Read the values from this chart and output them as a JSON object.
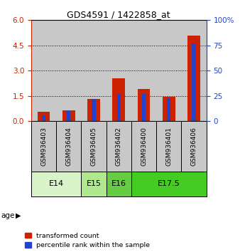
{
  "title": "GDS4591 / 1422858_at",
  "samples": [
    "GSM936403",
    "GSM936404",
    "GSM936405",
    "GSM936402",
    "GSM936400",
    "GSM936401",
    "GSM936406"
  ],
  "transformed_counts": [
    0.55,
    0.65,
    1.3,
    2.55,
    1.9,
    1.45,
    5.1
  ],
  "percentile_ranks_pct": [
    5.5,
    10.0,
    22.0,
    27.0,
    26.5,
    22.5,
    77.0
  ],
  "age_groups": [
    {
      "label": "E14",
      "span": [
        0,
        2
      ],
      "color": "#d8f4c8"
    },
    {
      "label": "E15",
      "span": [
        2,
        3
      ],
      "color": "#b0e890"
    },
    {
      "label": "E16",
      "span": [
        3,
        4
      ],
      "color": "#66cc44"
    },
    {
      "label": "E17.5",
      "span": [
        4,
        7
      ],
      "color": "#44cc22"
    }
  ],
  "ylim_left": [
    0,
    6
  ],
  "ylim_right": [
    0,
    100
  ],
  "yticks_left": [
    0,
    1.5,
    3,
    4.5,
    6
  ],
  "yticks_right": [
    0,
    25,
    50,
    75,
    100
  ],
  "red_color": "#cc2200",
  "blue_color": "#2244cc",
  "cell_bg_color": "#c8c8c8",
  "plot_bg_color": "#ffffff",
  "bar_width": 0.5,
  "blue_bar_width": 0.15,
  "legend_red": "transformed count",
  "legend_blue": "percentile rank within the sample",
  "age_label": "age"
}
